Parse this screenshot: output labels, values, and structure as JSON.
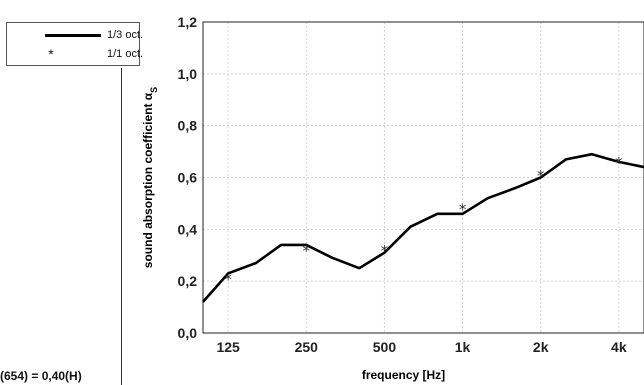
{
  "legend": {
    "third_octave_label": "1/3 oct.",
    "octave_label": "1/1 oct.",
    "octave_marker": "*"
  },
  "footnote": "(654) = 0,40(H)",
  "chart_data": {
    "type": "line",
    "xlabel": "frequency [Hz]",
    "ylabel": "sound absorption coefficient α",
    "ylabel_subscript": "S",
    "x_scale": "log",
    "ylim": [
      0.0,
      1.2
    ],
    "y_ticks": [
      0.0,
      0.2,
      0.4,
      0.6,
      0.8,
      1.0,
      1.2
    ],
    "y_tick_labels": [
      "0,0",
      "0,2",
      "0,4",
      "0,6",
      "0,8",
      "1,0",
      "1,2"
    ],
    "x_ticks": [
      125,
      250,
      500,
      1000,
      2000,
      4000
    ],
    "x_tick_labels": [
      "125",
      "250",
      "500",
      "1k",
      "2k",
      "4k"
    ],
    "grid": true,
    "series": [
      {
        "name": "1/3 oct.",
        "style": "line",
        "x": [
          100,
          125,
          160,
          200,
          250,
          315,
          400,
          500,
          630,
          800,
          1000,
          1250,
          1600,
          2000,
          2500,
          3150,
          4000,
          5000
        ],
        "y": [
          0.12,
          0.23,
          0.27,
          0.34,
          0.34,
          0.29,
          0.25,
          0.31,
          0.41,
          0.46,
          0.46,
          0.52,
          0.56,
          0.6,
          0.67,
          0.69,
          0.66,
          0.64
        ]
      },
      {
        "name": "1/1 oct.",
        "style": "marker",
        "x": [
          125,
          250,
          500,
          1000,
          2000,
          4000
        ],
        "y": [
          0.21,
          0.32,
          0.32,
          0.48,
          0.61,
          0.66
        ]
      }
    ]
  },
  "colors": {
    "line": "#000000",
    "grid": "#d4d4d4",
    "axis": "#222222"
  }
}
